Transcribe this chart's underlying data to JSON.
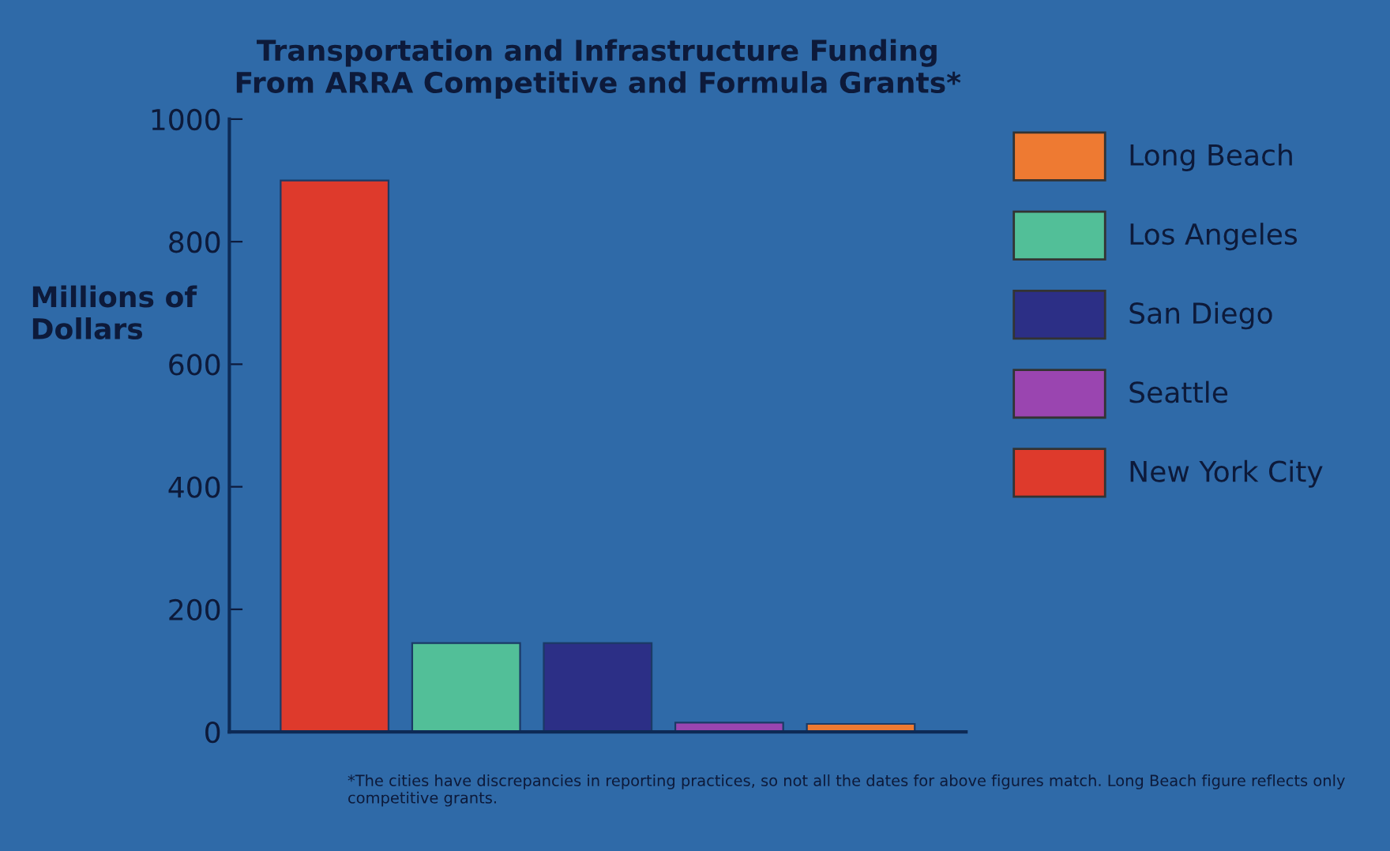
{
  "chart_data": {
    "type": "bar",
    "title": "Transportation and Infrastructure Funding\nFrom ARRA Competitive and Formula Grants*",
    "ylabel": "Millions of\nDollars",
    "categories": [
      null,
      null,
      null,
      null,
      null
    ],
    "series": [
      {
        "name": "Long Beach",
        "color": "#ee7a32",
        "values": [
          null,
          null,
          null,
          null,
          13
        ]
      },
      {
        "name": "Los Angeles",
        "color": "#52bf98",
        "values": [
          null,
          145,
          null,
          null,
          null
        ]
      },
      {
        "name": "San Diego",
        "color": "#2c2f86",
        "values": [
          null,
          null,
          145,
          null,
          null
        ]
      },
      {
        "name": "Seattle",
        "color": "#9a45b0",
        "values": [
          null,
          null,
          null,
          15,
          null
        ]
      },
      {
        "name": "New York City",
        "color": "#de3a2c",
        "values": [
          900,
          null,
          null,
          null,
          null
        ]
      }
    ],
    "ylim": [
      0,
      1000
    ],
    "yticks": [
      0,
      200,
      400,
      600,
      800,
      1000
    ],
    "grid": false,
    "legend": "right",
    "annotations": [
      "*The cities have discrepancies in reporting practices, so not all the dates for above figures match. Long Beach figure reflects only competitive grants."
    ]
  }
}
